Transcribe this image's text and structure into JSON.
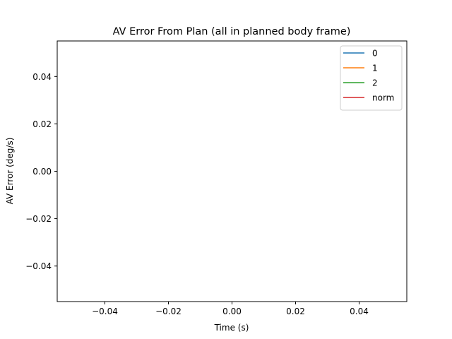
{
  "chart_data": {
    "type": "line",
    "title": "AV Error From Plan (all in planned body frame)",
    "xlabel": "Time (s)",
    "ylabel": "AV Error (deg/s)",
    "xlim": [
      -0.055,
      0.055
    ],
    "ylim": [
      -0.055,
      0.055
    ],
    "xticks": [
      -0.04,
      -0.02,
      0.0,
      0.02,
      0.04
    ],
    "xtick_labels": [
      "−0.04",
      "−0.02",
      "0.00",
      "0.02",
      "0.04"
    ],
    "yticks": [
      -0.04,
      -0.02,
      0.0,
      0.02,
      0.04
    ],
    "ytick_labels": [
      "−0.04",
      "−0.02",
      "0.00",
      "0.02",
      "0.04"
    ],
    "grid": false,
    "legend_position": "top-right",
    "series": [
      {
        "name": "0",
        "color": "#1f77b4",
        "x": [],
        "y": []
      },
      {
        "name": "1",
        "color": "#ff7f0e",
        "x": [],
        "y": []
      },
      {
        "name": "2",
        "color": "#2ca02c",
        "x": [],
        "y": []
      },
      {
        "name": "norm",
        "color": "#d62728",
        "x": [],
        "y": []
      }
    ]
  }
}
